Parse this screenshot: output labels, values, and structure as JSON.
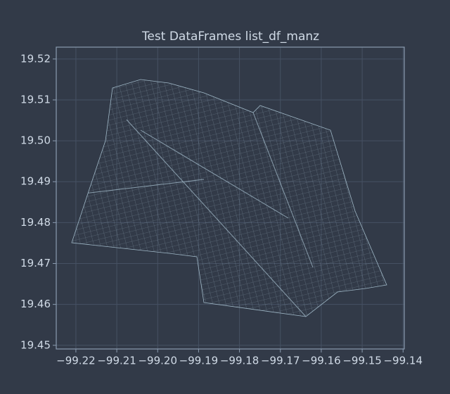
{
  "chart_data": {
    "type": "map",
    "title": "Test DataFrames list_df_manz",
    "xlim": [
      -99.2248,
      -99.1397
    ],
    "ylim": [
      19.4491,
      19.5229
    ],
    "xticks": [
      {
        "value": -99.22,
        "label": "−99.22"
      },
      {
        "value": -99.21,
        "label": "−99.21"
      },
      {
        "value": -99.2,
        "label": "−99.20"
      },
      {
        "value": -99.19,
        "label": "−99.19"
      },
      {
        "value": -99.18,
        "label": "−99.18"
      },
      {
        "value": -99.17,
        "label": "−99.17"
      },
      {
        "value": -99.16,
        "label": "−99.16"
      },
      {
        "value": -99.15,
        "label": "−99.15"
      },
      {
        "value": -99.14,
        "label": "−99.14"
      }
    ],
    "yticks": [
      19.45,
      19.46,
      19.47,
      19.48,
      19.49,
      {
        "value": 19.5,
        "label": "19.50"
      },
      19.51,
      19.52
    ],
    "grid": true,
    "color": "#9fb7c6"
  }
}
